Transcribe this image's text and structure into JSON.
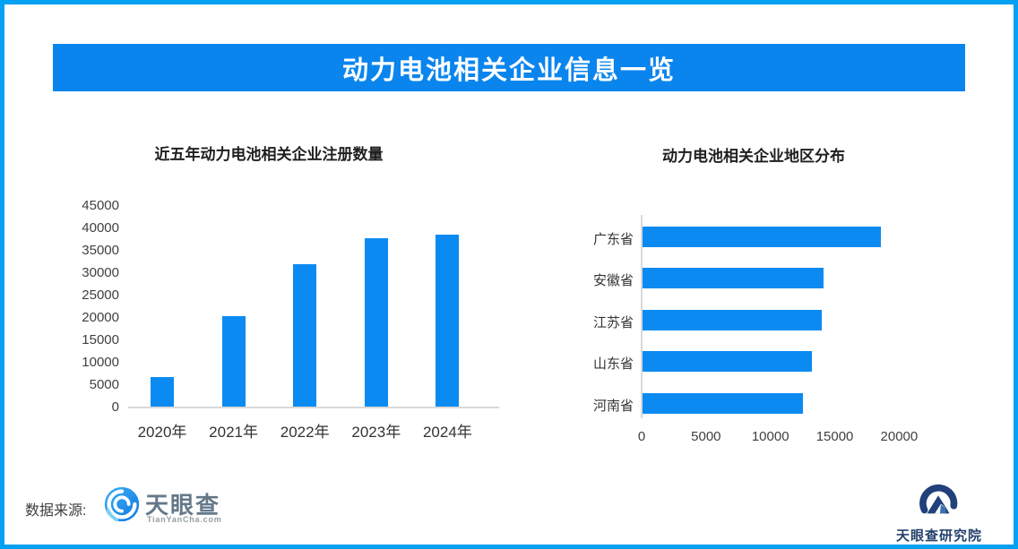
{
  "banner": {
    "title": "动力电池相关企业信息一览",
    "bg_color": "#0a85ee",
    "text_color": "#ffffff"
  },
  "accent": {
    "frame_border_color": "#04a0f4",
    "bar_color": "#0b8bf1",
    "axis_color": "#d9d9d9"
  },
  "chart_data": [
    {
      "type": "bar",
      "orientation": "vertical",
      "title": "近五年动力电池相关企业注册数量",
      "categories": [
        "2020年",
        "2021年",
        "2022年",
        "2023年",
        "2024年"
      ],
      "values": [
        6800,
        20500,
        32000,
        37800,
        38700
      ],
      "ylabel": "",
      "xlabel": "",
      "ylim": [
        0,
        45000
      ],
      "ytick_step": 5000,
      "yticks": [
        0,
        5000,
        10000,
        15000,
        20000,
        25000,
        30000,
        35000,
        40000,
        45000
      ],
      "grid": false,
      "legend": "none",
      "bar_color": "#0b8bf1"
    },
    {
      "type": "bar",
      "orientation": "horizontal",
      "title": "动力电池相关企业地区分布",
      "categories": [
        "广东省",
        "安徽省",
        "江苏省",
        "山东省",
        "河南省"
      ],
      "values": [
        18600,
        14100,
        14000,
        13200,
        12500
      ],
      "ylabel": "",
      "xlabel": "",
      "xlim": [
        0,
        25000
      ],
      "xticks": [
        0,
        5000,
        10000,
        15000,
        20000
      ],
      "grid": false,
      "legend": "none",
      "bar_color": "#0b8bf1"
    }
  ],
  "footer": {
    "source_label": "数据来源:",
    "tianyancha_logo_text": "天眼查",
    "tianyancha_logo_subtext": "TianYanCha.com",
    "research_institute_text": "天眼查研究院",
    "tianyancha_icon": "eye-swirl-icon",
    "research_icon": "swirl-house-icon"
  }
}
